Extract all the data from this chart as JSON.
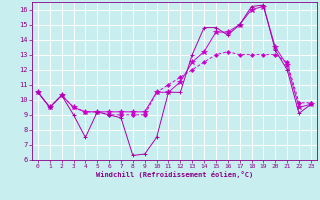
{
  "title": "Windchill (Refroidissement éolien,°C)",
  "background_color": "#c8eef0",
  "grid_color": "#ffffff",
  "line_color1": "#aa00aa",
  "line_color2": "#cc00cc",
  "line_color3": "#cc00cc",
  "xlim_min": -0.5,
  "xlim_max": 23.5,
  "ylim_min": 6,
  "ylim_max": 16.5,
  "xticks": [
    0,
    1,
    2,
    3,
    4,
    5,
    6,
    7,
    8,
    9,
    10,
    11,
    12,
    13,
    14,
    15,
    16,
    17,
    18,
    19,
    20,
    21,
    22,
    23
  ],
  "yticks": [
    6,
    7,
    8,
    9,
    10,
    11,
    12,
    13,
    14,
    15,
    16
  ],
  "x": [
    0,
    1,
    2,
    3,
    4,
    5,
    6,
    7,
    8,
    9,
    10,
    11,
    12,
    13,
    14,
    15,
    16,
    17,
    18,
    19,
    20,
    21,
    22,
    23
  ],
  "line1_y": [
    10.5,
    9.5,
    10.3,
    9.0,
    7.5,
    9.2,
    9.0,
    8.8,
    6.3,
    6.4,
    7.5,
    10.5,
    10.5,
    13.0,
    14.8,
    14.8,
    14.3,
    15.0,
    16.2,
    16.3,
    13.3,
    12.0,
    9.1,
    9.7
  ],
  "line2_y": [
    10.5,
    9.5,
    10.3,
    9.5,
    9.2,
    9.2,
    9.0,
    9.0,
    9.0,
    9.0,
    10.5,
    11.0,
    11.5,
    12.0,
    12.5,
    13.0,
    13.2,
    13.0,
    13.0,
    13.0,
    13.0,
    12.5,
    9.8,
    9.8
  ],
  "line3_y": [
    10.5,
    9.5,
    10.3,
    9.5,
    9.2,
    9.2,
    9.2,
    9.2,
    9.2,
    9.2,
    10.5,
    10.5,
    11.2,
    12.5,
    13.2,
    14.5,
    14.5,
    15.0,
    16.0,
    16.2,
    13.5,
    12.3,
    9.5,
    9.7
  ]
}
